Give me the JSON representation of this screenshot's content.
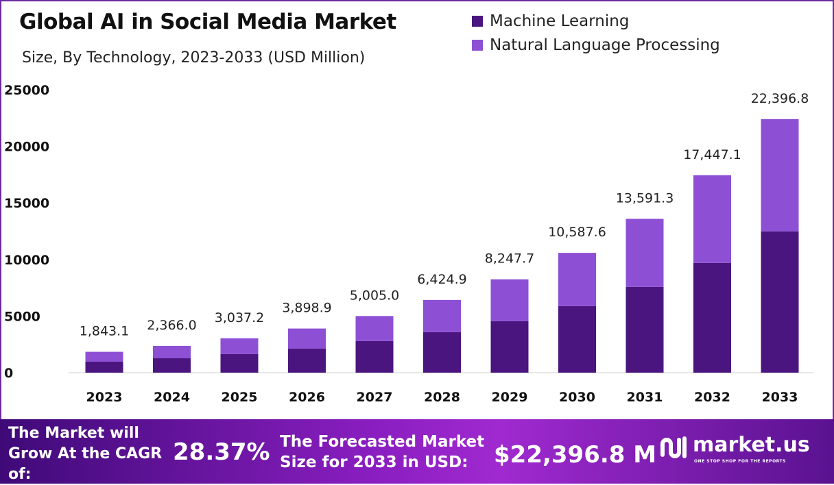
{
  "chart_data": {
    "type": "bar",
    "stacked": true,
    "title": "Global AI in Social Media Market",
    "subtitle": "Size, By Technology, 2023-2033 (USD Million)",
    "xlabel": "",
    "ylabel": "",
    "ylim": [
      0,
      25000
    ],
    "yticks": [
      0,
      5000,
      10000,
      15000,
      20000,
      25000
    ],
    "grid": false,
    "legend_position": "top-right",
    "categories": [
      "2023",
      "2024",
      "2025",
      "2026",
      "2027",
      "2028",
      "2029",
      "2030",
      "2031",
      "2032",
      "2033"
    ],
    "series": [
      {
        "name": "Machine Learning",
        "color": "#4b157f",
        "values": [
          970,
          1270,
          1640,
          2120,
          2790,
          3580,
          4550,
          5880,
          7580,
          9700,
          12490
        ]
      },
      {
        "name": "Natural Language Processing",
        "color": "#8d50d4",
        "values": [
          873.1,
          1096.0,
          1397.2,
          1778.9,
          2215.0,
          2844.9,
          3697.7,
          4707.6,
          6011.3,
          7747.1,
          9906.8
        ]
      }
    ],
    "totals": [
      1843.1,
      2366.0,
      3037.2,
      3898.9,
      5005.0,
      6424.9,
      8247.7,
      10587.6,
      13591.3,
      17447.1,
      22396.8
    ],
    "total_labels": [
      "1,843.1",
      "2,366.0",
      "3,037.2",
      "3,898.9",
      "5,005.0",
      "6,424.9",
      "8,247.7",
      "10,587.6",
      "13,591.3",
      "17,447.1",
      "22,396.8"
    ]
  },
  "banner": {
    "cagr_label": "The Market will Grow At the CAGR of:",
    "cagr_value": "28.37%",
    "forecast_label": "The Forecasted Market Size for 2033 in USD:",
    "forecast_value": "$22,396.8 M",
    "logo_name": "market.us",
    "logo_tagline": "ONE STOP SHOP FOR THE REPORTS"
  }
}
